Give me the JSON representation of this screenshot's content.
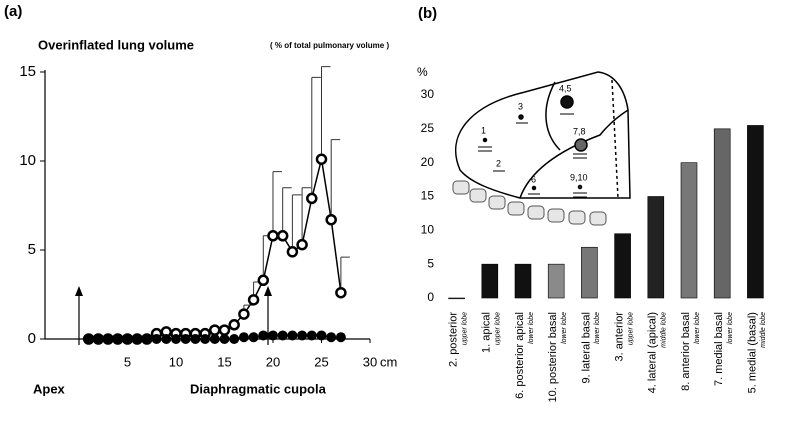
{
  "chart_data": [
    {
      "type": "line",
      "panel": "(a)",
      "title": "Overinflated lung volume",
      "subtitle": "( % of total pulmonary volume )",
      "x_label": "cm",
      "annotations": [
        "Apex",
        "Diaphragmatic cupola"
      ],
      "x": [
        1,
        2,
        3,
        4,
        5,
        6,
        7,
        8,
        9,
        10,
        11,
        12,
        13,
        14,
        15,
        16,
        17,
        18,
        19,
        20,
        21,
        22,
        23,
        24,
        25,
        26,
        27
      ],
      "series": [
        {
          "marker": "open",
          "color": "#000000",
          "values": [
            0,
            0,
            0,
            0,
            0,
            0,
            0,
            0.3,
            0.4,
            0.3,
            0.3,
            0.3,
            0.3,
            0.5,
            0.5,
            0.8,
            1.4,
            2.2,
            3.3,
            5.8,
            5.8,
            4.9,
            5.3,
            7.9,
            10.1,
            6.7,
            2.6
          ],
          "errors": [
            null,
            null,
            null,
            null,
            null,
            null,
            null,
            null,
            null,
            null,
            null,
            null,
            null,
            null,
            null,
            null,
            0.5,
            1.0,
            2.5,
            3.6,
            2.7,
            3.2,
            3.2,
            6.8,
            5.2,
            4.5,
            2.0
          ]
        },
        {
          "marker": "filled",
          "color": "#000000",
          "values": [
            0,
            0,
            0,
            0,
            0,
            0,
            0,
            0,
            0,
            0,
            0,
            0,
            0,
            0,
            0,
            0,
            0.1,
            0.1,
            0.2,
            0.2,
            0.2,
            0.2,
            0.2,
            0.2,
            0.2,
            0.1,
            0.1
          ]
        }
      ],
      "xlim": [
        -3.5,
        30
      ],
      "xticks": [
        5,
        10,
        15,
        20,
        25,
        30
      ],
      "ylim": [
        0,
        15
      ],
      "yticks": [
        0,
        5,
        10,
        15
      ]
    },
    {
      "type": "bar",
      "panel": "(b)",
      "y_label": "%",
      "categories": [
        "2. posterior",
        "1.  apical",
        "6. posterior apical",
        "10. posterior basal",
        "9. lateral basal",
        "3.  anterior",
        "4. lateral (apical)",
        "8. anterior basal",
        "7. medial basal",
        "5. medial (basal)"
      ],
      "lobes": [
        "upper lobe",
        "upper lobe",
        "lower lobe",
        "lower lobe",
        "lower lobe",
        "upper lobe",
        "middle lobe",
        "lower lobe",
        "lower lobe",
        "middle lobe"
      ],
      "values": [
        0,
        5,
        5,
        5,
        7.5,
        9.5,
        15,
        20,
        25,
        25.5
      ],
      "colors": [
        "#888888",
        "#111111",
        "#111111",
        "#8a8a8a",
        "#777777",
        "#111111",
        "#222222",
        "#777777",
        "#666666",
        "#111111"
      ],
      "ylim": [
        0,
        30
      ],
      "yticks": [
        0,
        5,
        10,
        15,
        20,
        25,
        30
      ],
      "inset_labels": [
        "1",
        "2",
        "3",
        "4,5",
        "6",
        "7,8",
        "9,10"
      ]
    }
  ]
}
